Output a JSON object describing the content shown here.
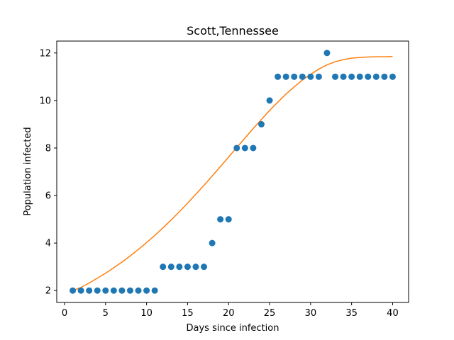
{
  "chart_data": {
    "type": "scatter",
    "title": "Scott,Tennessee",
    "xlabel": "Days since infection",
    "ylabel": "Population infected",
    "xlim": [
      -0.95,
      41.95
    ],
    "ylim": [
      1.5,
      12.5
    ],
    "xticks": [
      0,
      5,
      10,
      15,
      20,
      25,
      30,
      35,
      40
    ],
    "yticks": [
      2,
      4,
      6,
      8,
      10,
      12
    ],
    "grid": false,
    "colors": {
      "points": "#1f77b4",
      "fit": "#ff7f0e"
    },
    "series": [
      {
        "kind": "scatter",
        "x": [
          1,
          2,
          3,
          4,
          5,
          6,
          7,
          8,
          9,
          10,
          11,
          12,
          13,
          14,
          15,
          16,
          17,
          18,
          19,
          20,
          21,
          22,
          23,
          24,
          25,
          26,
          27,
          28,
          29,
          30,
          31,
          32,
          33,
          34,
          35,
          36,
          37,
          38,
          39,
          40
        ],
        "y": [
          2,
          2,
          2,
          2,
          2,
          2,
          2,
          2,
          2,
          2,
          2,
          3,
          3,
          3,
          3,
          3,
          3,
          4,
          5,
          5,
          8,
          8,
          8,
          9,
          10,
          11,
          11,
          11,
          11,
          11,
          11,
          12,
          11,
          11,
          11,
          11,
          11,
          11,
          11,
          11
        ]
      },
      {
        "kind": "line",
        "x": [
          1,
          2,
          3,
          4,
          5,
          6,
          7,
          8,
          9,
          10,
          11,
          12,
          13,
          14,
          15,
          16,
          17,
          18,
          19,
          20,
          21,
          22,
          23,
          24,
          25,
          26,
          27,
          28,
          29,
          30,
          31,
          32,
          33,
          34,
          35,
          36,
          37,
          38,
          39,
          40
        ],
        "y": [
          2.0,
          2.13,
          2.32,
          2.52,
          2.73,
          2.96,
          3.2,
          3.46,
          3.73,
          4.02,
          4.32,
          4.64,
          4.97,
          5.32,
          5.68,
          6.05,
          6.43,
          6.82,
          7.22,
          7.62,
          8.02,
          8.42,
          8.82,
          9.2,
          9.58,
          9.93,
          10.27,
          10.57,
          10.86,
          11.1,
          11.32,
          11.5,
          11.63,
          11.72,
          11.78,
          11.81,
          11.83,
          11.84,
          11.84,
          11.85
        ]
      }
    ]
  }
}
